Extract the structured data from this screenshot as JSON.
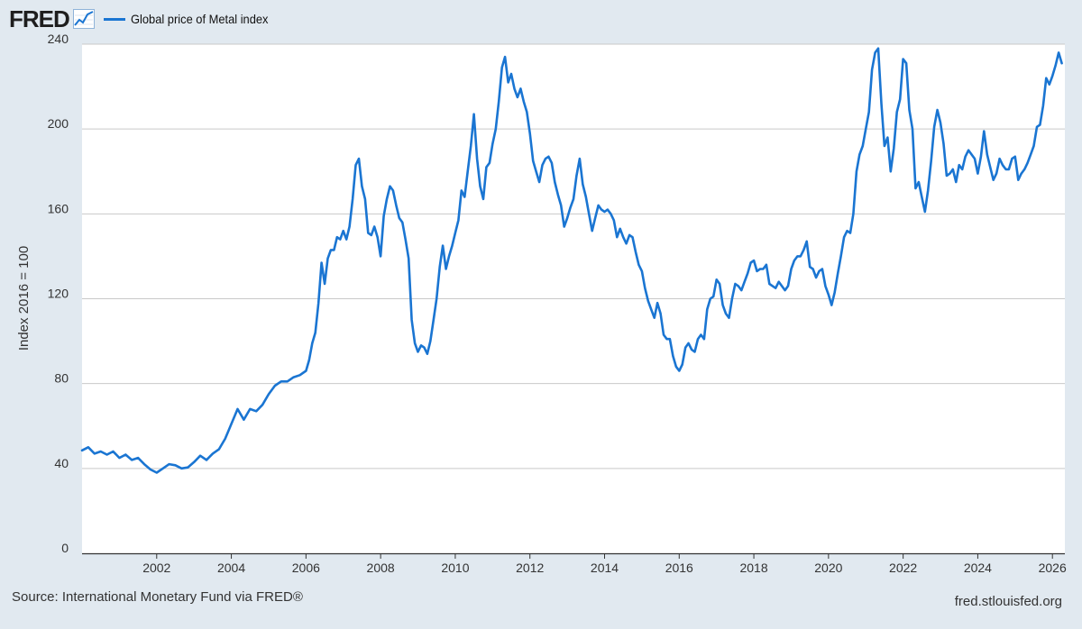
{
  "header": {
    "logo_text": "FRED",
    "logo_icon": "line-chart-icon"
  },
  "chart_data": {
    "type": "line",
    "title": "",
    "legend": "top-left",
    "series": [
      {
        "name": "Global price of Metal index",
        "color": "#1a75d2",
        "x": [
          "2000-01",
          "2000-03",
          "2000-05",
          "2000-07",
          "2000-09",
          "2000-11",
          "2001-01",
          "2001-03",
          "2001-05",
          "2001-07",
          "2001-09",
          "2001-11",
          "2002-01",
          "2002-03",
          "2002-05",
          "2002-07",
          "2002-09",
          "2002-11",
          "2003-01",
          "2003-03",
          "2003-05",
          "2003-07",
          "2003-09",
          "2003-11",
          "2004-01",
          "2004-03",
          "2004-05",
          "2004-07",
          "2004-09",
          "2004-11",
          "2005-01",
          "2005-03",
          "2005-05",
          "2005-07",
          "2005-09",
          "2005-11",
          "2006-01",
          "2006-02",
          "2006-03",
          "2006-04",
          "2006-05",
          "2006-06",
          "2006-07",
          "2006-08",
          "2006-09",
          "2006-10",
          "2006-11",
          "2006-12",
          "2007-01",
          "2007-02",
          "2007-03",
          "2007-04",
          "2007-05",
          "2007-06",
          "2007-07",
          "2007-08",
          "2007-09",
          "2007-10",
          "2007-11",
          "2007-12",
          "2008-01",
          "2008-02",
          "2008-03",
          "2008-04",
          "2008-05",
          "2008-06",
          "2008-07",
          "2008-08",
          "2008-09",
          "2008-10",
          "2008-11",
          "2008-12",
          "2009-01",
          "2009-02",
          "2009-03",
          "2009-04",
          "2009-05",
          "2009-06",
          "2009-07",
          "2009-08",
          "2009-09",
          "2009-10",
          "2009-11",
          "2009-12",
          "2010-01",
          "2010-02",
          "2010-03",
          "2010-04",
          "2010-05",
          "2010-06",
          "2010-07",
          "2010-08",
          "2010-09",
          "2010-10",
          "2010-11",
          "2010-12",
          "2011-01",
          "2011-02",
          "2011-03",
          "2011-04",
          "2011-05",
          "2011-06",
          "2011-07",
          "2011-08",
          "2011-09",
          "2011-10",
          "2011-11",
          "2011-12",
          "2012-01",
          "2012-02",
          "2012-03",
          "2012-04",
          "2012-05",
          "2012-06",
          "2012-07",
          "2012-08",
          "2012-09",
          "2012-10",
          "2012-11",
          "2012-12",
          "2013-01",
          "2013-02",
          "2013-03",
          "2013-04",
          "2013-05",
          "2013-06",
          "2013-07",
          "2013-08",
          "2013-09",
          "2013-10",
          "2013-11",
          "2013-12",
          "2014-01",
          "2014-02",
          "2014-03",
          "2014-04",
          "2014-05",
          "2014-06",
          "2014-07",
          "2014-08",
          "2014-09",
          "2014-10",
          "2014-11",
          "2014-12",
          "2015-01",
          "2015-02",
          "2015-03",
          "2015-04",
          "2015-05",
          "2015-06",
          "2015-07",
          "2015-08",
          "2015-09",
          "2015-10",
          "2015-11",
          "2015-12",
          "2016-01",
          "2016-02",
          "2016-03",
          "2016-04",
          "2016-05",
          "2016-06",
          "2016-07",
          "2016-08",
          "2016-09",
          "2016-10",
          "2016-11",
          "2016-12",
          "2017-01",
          "2017-02",
          "2017-03",
          "2017-04",
          "2017-05",
          "2017-06",
          "2017-07",
          "2017-08",
          "2017-09",
          "2017-10",
          "2017-11",
          "2017-12",
          "2018-01",
          "2018-02",
          "2018-03",
          "2018-04",
          "2018-05",
          "2018-06",
          "2018-07",
          "2018-08",
          "2018-09",
          "2018-10",
          "2018-11",
          "2018-12",
          "2019-01",
          "2019-02",
          "2019-03",
          "2019-04",
          "2019-05",
          "2019-06",
          "2019-07",
          "2019-08",
          "2019-09",
          "2019-10",
          "2019-11",
          "2019-12",
          "2020-01",
          "2020-02",
          "2020-03",
          "2020-04",
          "2020-05",
          "2020-06",
          "2020-07",
          "2020-08",
          "2020-09",
          "2020-10",
          "2020-11",
          "2020-12",
          "2021-01",
          "2021-02",
          "2021-03",
          "2021-04",
          "2021-05",
          "2021-06",
          "2021-07",
          "2021-08",
          "2021-09",
          "2021-10",
          "2021-11",
          "2021-12",
          "2022-01",
          "2022-02",
          "2022-03",
          "2022-04",
          "2022-05",
          "2022-06",
          "2022-07",
          "2022-08",
          "2022-09",
          "2022-10",
          "2022-11",
          "2022-12",
          "2023-01",
          "2023-02",
          "2023-03",
          "2023-04",
          "2023-05",
          "2023-06",
          "2023-07",
          "2023-08",
          "2023-09",
          "2023-10",
          "2023-11",
          "2023-12",
          "2024-01",
          "2024-02",
          "2024-03",
          "2024-04",
          "2024-05",
          "2024-06",
          "2024-07",
          "2024-08",
          "2024-09",
          "2024-10",
          "2024-11",
          "2024-12",
          "2025-01",
          "2025-02",
          "2025-03",
          "2025-04",
          "2025-05",
          "2025-06",
          "2025-07",
          "2025-08",
          "2025-09",
          "2025-10",
          "2025-11",
          "2025-12",
          "2026-01",
          "2026-02",
          "2026-03",
          "2026-04"
        ],
        "values": [
          48.5,
          50,
          47,
          48,
          46.5,
          48,
          45,
          46.5,
          44,
          45,
          42,
          39.5,
          38,
          40,
          42,
          41.5,
          40,
          40.5,
          43,
          46,
          44,
          47,
          49,
          54,
          61,
          68,
          63,
          68,
          67,
          70,
          75,
          79,
          81,
          81,
          83,
          84,
          86,
          91,
          99,
          104,
          118,
          137,
          127,
          139,
          143,
          143,
          149,
          148,
          152,
          148,
          154,
          167,
          183,
          186,
          173,
          167,
          151,
          150,
          154,
          149,
          140,
          159,
          167,
          173,
          171,
          164,
          158,
          156,
          148,
          139,
          110,
          99,
          95,
          98,
          97,
          94,
          100,
          110,
          120,
          135,
          145,
          134,
          140,
          145,
          151,
          157,
          171,
          168,
          180,
          192,
          207,
          186,
          173,
          167,
          182,
          184,
          193,
          200,
          213,
          229,
          234,
          222,
          226,
          219,
          215,
          219,
          213,
          208,
          198,
          185,
          180,
          175,
          183,
          186,
          187,
          184,
          175,
          169,
          164,
          154,
          158,
          163,
          167,
          178,
          186,
          174,
          168,
          160,
          152,
          158,
          164,
          162,
          161,
          162,
          160,
          157,
          149,
          153,
          149,
          146,
          150,
          149,
          142,
          136,
          133,
          125,
          119,
          115,
          111,
          118,
          113,
          103,
          101,
          101,
          93,
          88,
          86,
          89,
          97,
          99,
          96,
          95,
          101,
          103,
          101,
          115,
          120,
          121,
          129,
          127,
          117,
          113,
          111,
          120,
          127,
          126,
          124,
          128,
          132,
          137,
          138,
          133,
          134,
          134,
          136,
          127,
          126,
          125,
          128,
          126,
          124,
          126,
          134,
          138,
          140,
          140,
          143,
          147,
          135,
          134,
          130,
          133,
          134,
          126,
          122,
          117,
          123,
          132,
          140,
          149,
          152,
          151,
          160,
          180,
          188,
          192,
          200,
          208,
          228,
          236,
          238,
          212,
          192,
          196,
          180,
          191,
          208,
          214,
          233,
          231,
          209,
          200,
          172,
          175,
          168,
          161,
          171,
          185,
          201,
          209,
          203,
          193,
          178,
          179,
          181,
          175,
          183,
          181,
          187,
          190,
          188,
          186,
          179,
          187,
          199,
          188,
          182,
          176,
          179,
          186,
          183,
          181,
          181,
          186,
          187,
          176,
          179,
          181,
          184,
          188,
          192,
          201,
          202,
          211,
          224,
          221,
          225,
          230,
          236,
          231
        ]
      }
    ],
    "xlabel": "",
    "ylabel": "Index 2016 = 100",
    "ylim": [
      0,
      240
    ],
    "xlim": [
      "2000-01",
      "2026-05"
    ],
    "yticks": [
      "0",
      "40",
      "80",
      "120",
      "160",
      "200",
      "240"
    ],
    "xticks": [
      "2002",
      "2004",
      "2006",
      "2008",
      "2010",
      "2012",
      "2014",
      "2016",
      "2018",
      "2020",
      "2022",
      "2024",
      "2026"
    ],
    "grid": "horizontal"
  },
  "footer": {
    "source": "Source: International Monetary Fund via FRED®",
    "site": "fred.stlouisfed.org"
  }
}
